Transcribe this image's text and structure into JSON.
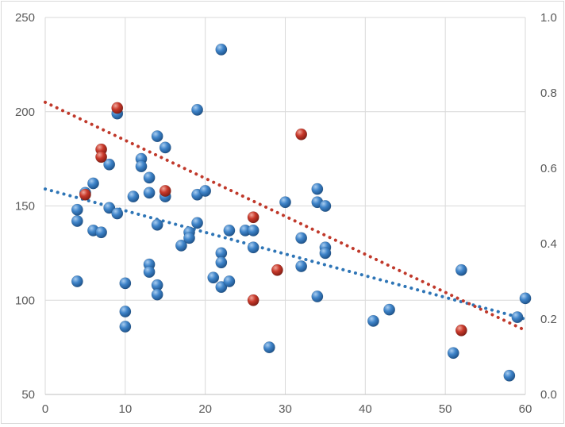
{
  "chart_data": {
    "type": "scatter",
    "title": "",
    "xlabel": "",
    "ylabel": "",
    "xlim": [
      0,
      60
    ],
    "ylim": [
      50,
      250
    ],
    "y2lim": [
      0,
      1
    ],
    "x_ticks": [
      "0",
      "10",
      "20",
      "30",
      "40",
      "50",
      "60"
    ],
    "y_ticks": [
      "50",
      "100",
      "150",
      "200",
      "250"
    ],
    "y2_ticks": [
      "0.0",
      "0.2",
      "0.4",
      "0.6",
      "0.8",
      "1.0"
    ],
    "grid": true,
    "legend": "none",
    "series": [
      {
        "color": "#2e75b6",
        "points": [
          [
            4,
            148
          ],
          [
            4,
            142
          ],
          [
            4,
            110
          ],
          [
            5,
            157
          ],
          [
            6,
            162
          ],
          [
            6,
            137
          ],
          [
            7,
            136
          ],
          [
            8,
            149
          ],
          [
            8,
            172
          ],
          [
            9,
            199
          ],
          [
            9,
            146
          ],
          [
            10,
            109
          ],
          [
            10,
            94
          ],
          [
            10,
            86
          ],
          [
            11,
            155
          ],
          [
            12,
            175
          ],
          [
            12,
            171
          ],
          [
            13,
            165
          ],
          [
            13,
            157
          ],
          [
            13,
            119
          ],
          [
            13,
            115
          ],
          [
            14,
            187
          ],
          [
            14,
            140
          ],
          [
            14,
            108
          ],
          [
            14,
            103
          ],
          [
            15,
            181
          ],
          [
            15,
            155
          ],
          [
            17,
            129
          ],
          [
            18,
            136
          ],
          [
            18,
            133
          ],
          [
            19,
            201
          ],
          [
            19,
            141
          ],
          [
            19,
            156
          ],
          [
            20,
            158
          ],
          [
            21,
            112
          ],
          [
            22,
            233
          ],
          [
            22,
            125
          ],
          [
            22,
            120
          ],
          [
            22,
            107
          ],
          [
            23,
            110
          ],
          [
            23,
            137
          ],
          [
            25,
            137
          ],
          [
            26,
            137
          ],
          [
            26,
            128
          ],
          [
            28,
            75
          ],
          [
            30,
            152
          ],
          [
            32,
            133
          ],
          [
            32,
            118
          ],
          [
            34,
            159
          ],
          [
            34,
            152
          ],
          [
            34,
            102
          ],
          [
            35,
            150
          ],
          [
            35,
            128
          ],
          [
            35,
            125
          ],
          [
            41,
            89
          ],
          [
            43,
            95
          ],
          [
            51,
            72
          ],
          [
            52,
            116
          ],
          [
            58,
            60
          ],
          [
            59,
            91
          ],
          [
            60,
            101
          ]
        ],
        "trendline": {
          "style": "dotted",
          "from": [
            0,
            159
          ],
          "to": [
            60,
            90
          ]
        }
      },
      {
        "color": "#c0392b",
        "points": [
          [
            5,
            156
          ],
          [
            7,
            180
          ],
          [
            7,
            176
          ],
          [
            9,
            202
          ],
          [
            15,
            158
          ],
          [
            26,
            100
          ],
          [
            26,
            144
          ],
          [
            29,
            116
          ],
          [
            32,
            188
          ],
          [
            52,
            84
          ]
        ],
        "trendline": {
          "style": "dotted",
          "from": [
            0,
            205
          ],
          "to": [
            60,
            84
          ]
        }
      }
    ]
  }
}
